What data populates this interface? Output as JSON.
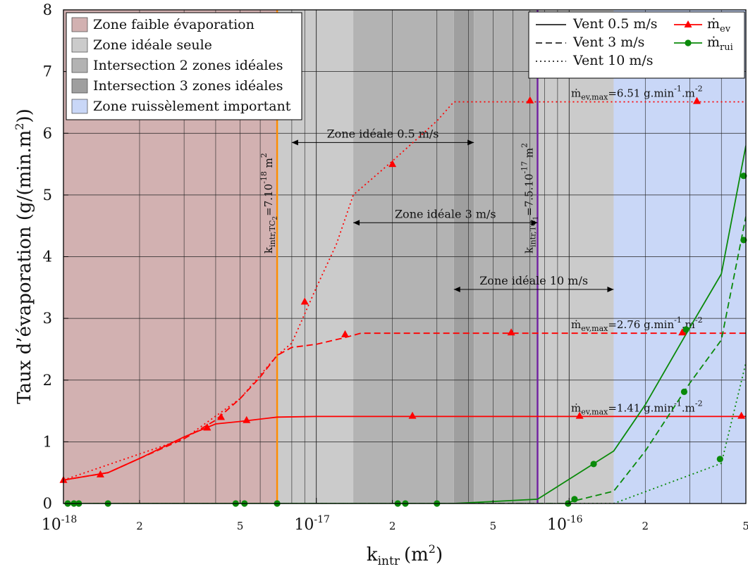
{
  "chart_data": {
    "type": "line",
    "xscale": "log",
    "xlim": [
      1e-18,
      5e-16
    ],
    "ylim": [
      0,
      8
    ],
    "xlabel": "k",
    "xlabel_sub": "intr",
    "xlabel_unit": "(m",
    "xlabel_unit_sup": "2",
    "xlabel_unit_end": ")",
    "ylabel": "Taux d’évaporation (g/(min.m",
    "ylabel_sup": "2",
    "ylabel_end": "))",
    "yticks": [
      0,
      1,
      2,
      3,
      4,
      5,
      6,
      7,
      8
    ],
    "xticks_major": [
      {
        "x": 1e-18,
        "mant": "10",
        "exp": "-18"
      },
      {
        "x": 1e-17,
        "mant": "10",
        "exp": "-17"
      },
      {
        "x": 1e-16,
        "mant": "10",
        "exp": "-16"
      }
    ],
    "xticks_minor": [
      {
        "x": 2e-18,
        "label": "2"
      },
      {
        "x": 5e-18,
        "label": "5"
      },
      {
        "x": 2e-17,
        "label": "2"
      },
      {
        "x": 5e-17,
        "label": "5"
      },
      {
        "x": 2e-16,
        "label": "2"
      },
      {
        "x": 5e-16,
        "label": "5"
      }
    ],
    "colors": {
      "zone_faible": "#d2b1b1",
      "zone_ideale": "#cbcbcb",
      "zone_2": "#b3b3b3",
      "zone_3": "#9f9f9f",
      "zone_ruiss": "#c9d7f7",
      "evaporation": "#ff0000",
      "ruissellement": "#0a8a0a",
      "k_tc2": "#ff8c00",
      "k_tc1": "#7020a0"
    },
    "zones": [
      {
        "kind": "zone_faible",
        "from": 1e-18,
        "to": 7e-18
      },
      {
        "kind": "zone_ideale",
        "from": 7e-18,
        "to": 1.4e-17
      },
      {
        "kind": "zone_2",
        "from": 1.4e-17,
        "to": 3.5e-17
      },
      {
        "kind": "zone_3",
        "from": 3.5e-17,
        "to": 4.2e-17
      },
      {
        "kind": "zone_2",
        "from": 4.2e-17,
        "to": 7.5e-17
      },
      {
        "kind": "zone_ideale",
        "from": 7.5e-17,
        "to": 1.5e-16
      },
      {
        "kind": "zone_ruiss",
        "from": 1.5e-16,
        "to": 5e-16
      }
    ],
    "legend_zones": [
      {
        "kind": "zone_faible",
        "label": "Zone faible évaporation"
      },
      {
        "kind": "zone_ideale",
        "label": "Zone idéale seule"
      },
      {
        "kind": "zone_2",
        "label": "Intersection 2 zones idéales"
      },
      {
        "kind": "zone_3",
        "label": "Intersection 3 zones idéales"
      },
      {
        "kind": "zone_ruiss",
        "label": "Zone ruissèlement important"
      }
    ],
    "legend_wind": [
      {
        "dash": "solid",
        "label": "Vent 0.5 m/s"
      },
      {
        "dash": "dashed",
        "label": "Vent 3 m/s"
      },
      {
        "dash": "dotted",
        "label": "Vent 10 m/s"
      }
    ],
    "legend_markers": [
      {
        "marker": "triangle",
        "color": "evaporation",
        "label": "ṁ",
        "sub": "ev"
      },
      {
        "marker": "circle",
        "color": "ruissellement",
        "label": "ṁ",
        "sub": "rui"
      }
    ],
    "vlines": [
      {
        "x": 7e-18,
        "color": "k_tc2",
        "base": "k",
        "sub": "intr,TC",
        "subsub": "2",
        "value": "=7.10",
        "exp": "-18",
        "unit": " m",
        "unit_exp": "2"
      },
      {
        "x": 7.5e-17,
        "color": "k_tc1",
        "base": "k",
        "sub": "intr,TC",
        "subsub": "1",
        "value": "=7.5.10",
        "exp": "-17",
        "unit": " m",
        "unit_exp": "2"
      }
    ],
    "ideal_ranges": [
      {
        "label": "Zone idéale 0.5 m/s",
        "from": 8e-18,
        "to": 4.2e-17,
        "y": 5.85
      },
      {
        "label": "Zone idéale 3 m/s",
        "from": 1.4e-17,
        "to": 7.5e-17,
        "y": 4.55
      },
      {
        "label": "Zone idéale 10 m/s",
        "from": 3.5e-17,
        "to": 1.5e-16,
        "y": 3.47
      }
    ],
    "max_annotations": [
      {
        "prefix": "ṁ",
        "sub": "ev,max",
        "value": "=1.41 g.min",
        "e1": "-1",
        "mid": ".m",
        "e2": "-2",
        "y": 1.41
      },
      {
        "prefix": "ṁ",
        "sub": "ev,max",
        "value": "=2.76 g.min",
        "e1": "-1",
        "mid": ".m",
        "e2": "-2",
        "y": 2.76
      },
      {
        "prefix": "ṁ",
        "sub": "ev,max",
        "value": "=6.51 g.min",
        "e1": "-1",
        "mid": ".m",
        "e2": "-2",
        "y": 6.51
      }
    ],
    "series": [
      {
        "group": "evaporation",
        "dash": "solid",
        "line": [
          [
            1e-18,
            0.38
          ],
          [
            1.5e-18,
            0.5
          ],
          [
            2e-18,
            0.73
          ],
          [
            3e-18,
            1.08
          ],
          [
            4e-18,
            1.29
          ],
          [
            5e-18,
            1.33
          ],
          [
            7e-18,
            1.4
          ],
          [
            1e-17,
            1.41
          ],
          [
            1e-16,
            1.41
          ],
          [
            5e-16,
            1.41
          ]
        ],
        "markers": [
          [
            1e-18,
            0.38
          ],
          [
            1.4e-18,
            0.47
          ],
          [
            3.7e-18,
            1.23
          ],
          [
            5.3e-18,
            1.35
          ],
          [
            2.4e-17,
            1.42
          ],
          [
            1.1e-16,
            1.42
          ],
          [
            4.8e-16,
            1.42
          ]
        ]
      },
      {
        "group": "evaporation",
        "dash": "dashed",
        "line": [
          [
            1e-18,
            0.38
          ],
          [
            1.5e-18,
            0.5
          ],
          [
            2e-18,
            0.73
          ],
          [
            3e-18,
            1.05
          ],
          [
            4e-18,
            1.35
          ],
          [
            5e-18,
            1.7
          ],
          [
            6e-18,
            2.05
          ],
          [
            7e-18,
            2.4
          ],
          [
            8e-18,
            2.53
          ],
          [
            1e-17,
            2.58
          ],
          [
            1.3e-17,
            2.69
          ],
          [
            1.5e-17,
            2.76
          ],
          [
            5e-16,
            2.76
          ]
        ],
        "markers": [
          [
            3.7e-18,
            1.23
          ],
          [
            4.2e-18,
            1.4
          ],
          [
            1.3e-17,
            2.74
          ],
          [
            5.9e-17,
            2.77
          ],
          [
            2.8e-16,
            2.77
          ]
        ]
      },
      {
        "group": "evaporation",
        "dash": "dotted",
        "line": [
          [
            1e-18,
            0.38
          ],
          [
            3e-18,
            1.05
          ],
          [
            5e-18,
            1.7
          ],
          [
            7e-18,
            2.4
          ],
          [
            8e-18,
            2.6
          ],
          [
            1e-17,
            3.5
          ],
          [
            1.2e-17,
            4.2
          ],
          [
            1.4e-17,
            5.0
          ],
          [
            2e-17,
            5.55
          ],
          [
            3e-17,
            6.2
          ],
          [
            3.5e-17,
            6.51
          ],
          [
            5e-16,
            6.51
          ]
        ],
        "markers": [
          [
            9e-18,
            3.27
          ],
          [
            2e-17,
            5.5
          ],
          [
            7e-17,
            6.53
          ],
          [
            3.2e-16,
            6.52
          ]
        ]
      },
      {
        "group": "ruissellement",
        "dash": "solid",
        "line": [
          [
            1e-18,
            0
          ],
          [
            3.5e-17,
            0
          ],
          [
            7.5e-17,
            0.07
          ],
          [
            1.5e-16,
            0.85
          ],
          [
            2e-16,
            1.6
          ],
          [
            3e-16,
            2.85
          ],
          [
            4e-16,
            3.72
          ],
          [
            5e-16,
            5.8
          ]
        ],
        "markers": [
          [
            1.04e-18,
            0
          ],
          [
            1.15e-18,
            0
          ],
          [
            1.5e-18,
            0
          ],
          [
            4.8e-18,
            0
          ],
          [
            7e-18,
            0
          ],
          [
            2.1e-17,
            0
          ],
          [
            3e-17,
            0
          ],
          [
            1.25e-16,
            0.64
          ],
          [
            2.9e-16,
            2.82
          ]
        ]
      },
      {
        "group": "ruissellement",
        "dash": "dashed",
        "line": [
          [
            1e-18,
            0
          ],
          [
            9.5e-17,
            0
          ],
          [
            1.5e-16,
            0.2
          ],
          [
            2e-16,
            0.85
          ],
          [
            3e-16,
            1.95
          ],
          [
            4e-16,
            2.65
          ],
          [
            5e-16,
            4.65
          ]
        ],
        "markers": [
          [
            1.1e-18,
            0
          ],
          [
            5.2e-18,
            0
          ],
          [
            2.25e-17,
            0
          ],
          [
            1.05e-16,
            0.07
          ],
          [
            2.85e-16,
            1.81
          ],
          [
            4.9e-16,
            4.27
          ]
        ]
      },
      {
        "group": "ruissellement",
        "dash": "dotted",
        "line": [
          [
            1e-18,
            0
          ],
          [
            1.5e-16,
            0
          ],
          [
            4e-16,
            0.65
          ],
          [
            5e-16,
            2.28
          ]
        ],
        "markers": [
          [
            9.9e-17,
            0
          ],
          [
            3.95e-16,
            0.72
          ],
          [
            4.9e-16,
            5.31
          ]
        ]
      }
    ]
  }
}
